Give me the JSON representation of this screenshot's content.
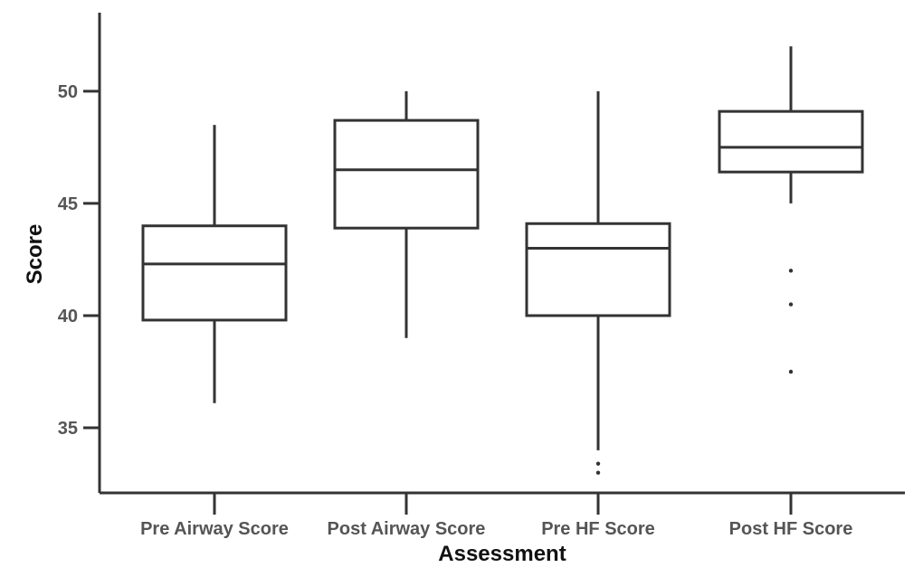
{
  "chart_data": {
    "type": "boxplot",
    "xlabel": "Assessment",
    "ylabel": "Score",
    "categories": [
      "Pre Airway Score",
      "Post Airway Score",
      "Pre HF Score",
      "Post HF Score"
    ],
    "y_ticks": [
      "35",
      "40",
      "45",
      "50"
    ],
    "ylim": [
      32.1,
      53.5
    ],
    "grid": false,
    "boxes": [
      {
        "label": "Pre Airway Score",
        "min": 36.1,
        "q1": 39.8,
        "median": 42.3,
        "q3": 44.0,
        "max": 48.5,
        "outliers": []
      },
      {
        "label": "Post Airway Score",
        "min": 39.0,
        "q1": 43.9,
        "median": 46.5,
        "q3": 48.7,
        "max": 50.0,
        "outliers": []
      },
      {
        "label": "Pre HF Score",
        "min": 34.0,
        "q1": 40.0,
        "median": 43.0,
        "q3": 44.1,
        "max": 50.0,
        "outliers": [
          33.4,
          33.0
        ]
      },
      {
        "label": "Post HF Score",
        "min": 45.0,
        "q1": 46.4,
        "median": 47.5,
        "q3": 49.1,
        "max": 52.0,
        "outliers": [
          42.0,
          40.5,
          37.5
        ]
      }
    ]
  }
}
